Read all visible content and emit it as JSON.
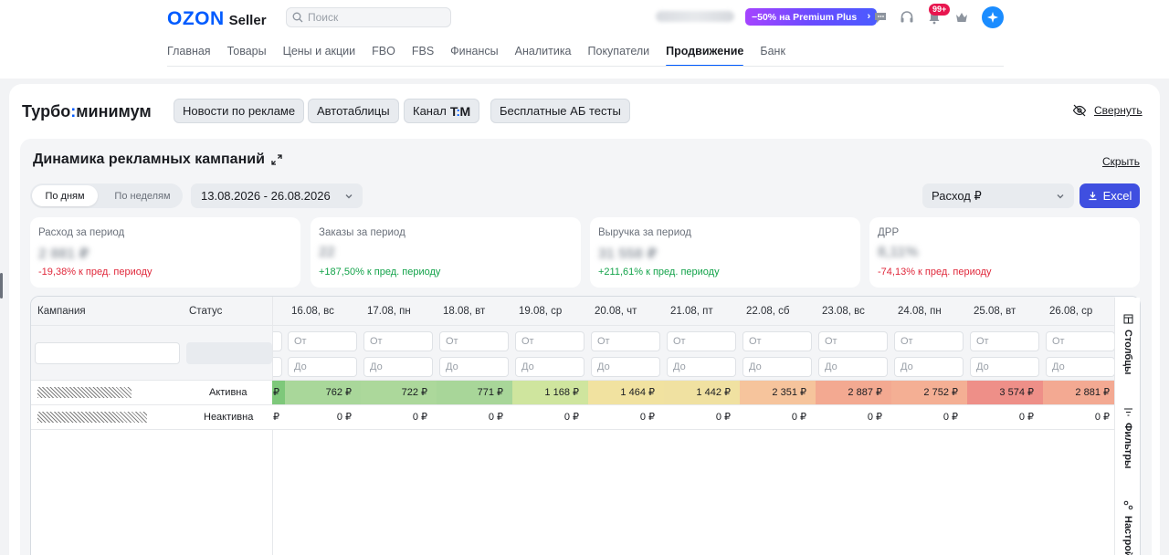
{
  "header": {
    "logo_brand": "OZON",
    "logo_product": "Seller",
    "search_placeholder": "Поиск",
    "premium_label": "−50% на Premium Plus",
    "premium_arrow": "›",
    "notifications_badge": "99+",
    "nav": [
      {
        "label": "Главная",
        "active": false
      },
      {
        "label": "Товары",
        "active": false
      },
      {
        "label": "Цены и акции",
        "active": false
      },
      {
        "label": "FBO",
        "active": false
      },
      {
        "label": "FBS",
        "active": false
      },
      {
        "label": "Финансы",
        "active": false
      },
      {
        "label": "Аналитика",
        "active": false
      },
      {
        "label": "Покупатели",
        "active": false
      },
      {
        "label": "Продвижение",
        "active": true
      },
      {
        "label": "Банк",
        "active": false
      }
    ]
  },
  "turbo": {
    "title_left": "Турбо",
    "title_colon": ":",
    "title_right": "минимум",
    "chips": [
      {
        "label": "Новости по рекламе"
      },
      {
        "label": "Автотаблицы"
      },
      {
        "label": "Канал",
        "suffix_t": "T",
        "suffix_colon": ":",
        "suffix_m": "M"
      },
      {
        "label": "Бесплатные АБ тесты"
      }
    ],
    "collapse_label": "Свернуть"
  },
  "card": {
    "title": "Динамика рекламных кампаний",
    "hide_label": "Скрыть",
    "period_toggle": {
      "selected": "По дням",
      "other": "По неделям"
    },
    "date_range": "13.08.2026 - 26.08.2026",
    "metric_select": "Расход ₽",
    "excel_label": "Excel",
    "kpis": [
      {
        "label": "Расход за период",
        "value": "2 881 ₽",
        "delta": "-19,38% к пред. периоду",
        "trend": "down"
      },
      {
        "label": "Заказы за период",
        "value": "22",
        "delta": "+187,50% к пред. периоду",
        "trend": "up"
      },
      {
        "label": "Выручка за период",
        "value": "31 558 ₽",
        "delta": "+211,61% к пред. периоду",
        "trend": "up"
      },
      {
        "label": "ДРР",
        "value": "8,11%",
        "delta": "-74,13% к пред. периоду",
        "trend": "down"
      }
    ]
  },
  "table": {
    "col_campaign": "Кампания",
    "col_status": "Статус",
    "dates": [
      "16.08, вс",
      "17.08, пн",
      "18.08, вт",
      "19.08, ср",
      "20.08, чт",
      "21.08, пт",
      "22.08, сб",
      "23.08, вс",
      "24.08, пн",
      "25.08, вт",
      "26.08, ср"
    ],
    "filter_from": "От",
    "filter_to": "До",
    "stub_currency": "₽",
    "rows": [
      {
        "status": "Активна",
        "values": [
          "762 ₽",
          "722 ₽",
          "771 ₽",
          "1 168 ₽",
          "1 464 ₽",
          "1 442 ₽",
          "2 351 ₽",
          "2 887 ₽",
          "2 752 ₽",
          "3 574 ₽",
          "2 881 ₽"
        ],
        "colors": [
          "#a9d79a",
          "#acd89b",
          "#a8d699",
          "#cfe59e",
          "#f1e2a0",
          "#f0e1a1",
          "#f6c49c",
          "#f3a991",
          "#f4af94",
          "#ee8f88",
          "#f3a992"
        ],
        "stub_color": "#7ec87a"
      },
      {
        "status": "Неактивна",
        "values": [
          "0 ₽",
          "0 ₽",
          "0 ₽",
          "0 ₽",
          "0 ₽",
          "0 ₽",
          "0 ₽",
          "0 ₽",
          "0 ₽",
          "0 ₽",
          "0 ₽"
        ],
        "colors": [
          "#ffffff",
          "#ffffff",
          "#ffffff",
          "#ffffff",
          "#ffffff",
          "#ffffff",
          "#ffffff",
          "#ffffff",
          "#ffffff",
          "#ffffff",
          "#ffffff"
        ],
        "stub_color": "#ffffff"
      }
    ],
    "side_tools": [
      {
        "label": "Столбцы",
        "icon": "columns-icon"
      },
      {
        "label": "Фильтры",
        "icon": "filter-icon"
      },
      {
        "label": "Настройки",
        "icon": "settings-icon"
      }
    ]
  }
}
